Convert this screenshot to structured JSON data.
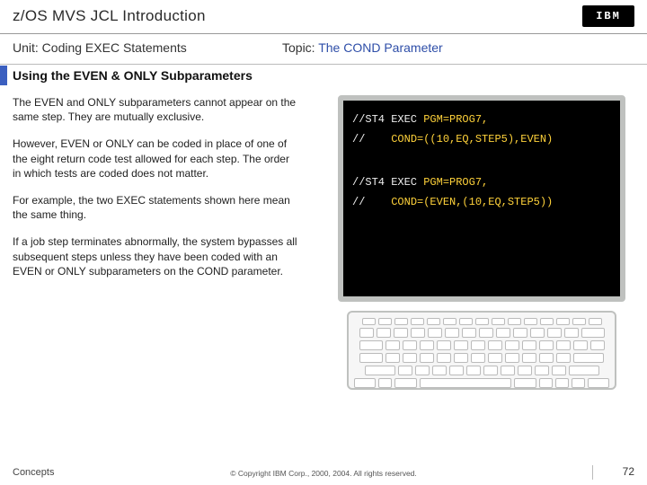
{
  "titlebar": {
    "title": "z/OS MVS JCL Introduction",
    "logo_text": "IBM"
  },
  "subbar": {
    "unit": "Unit: Coding EXEC Statements",
    "topic_label": "Topic: ",
    "topic_value": "The COND Parameter"
  },
  "heading": "Using the EVEN & ONLY Subparameters",
  "paragraphs": {
    "p1": "The EVEN and ONLY subparameters cannot appear on the same step. They are mutually exclusive.",
    "p2": "However, EVEN or ONLY can be coded in place of one of the eight return code test allowed for each step. The order in which tests are coded does not matter.",
    "p3": "For example, the two EXEC statements shown here mean the same thing.",
    "p4": "If a job step terminates abnormally, the system bypasses all subsequent steps unless they have been coded with an EVEN or ONLY subparameters on the COND parameter."
  },
  "terminal": {
    "l1a": "//ST4 EXEC ",
    "l1b": "PGM=PROG7,",
    "l2a": "//    ",
    "l2b": "COND=((10,EQ,STEP5),EVEN)",
    "l3a": "//ST4 EXEC ",
    "l3b": "PGM=PROG7,",
    "l4a": "//    ",
    "l4b": "COND=(EVEN,(10,EQ,STEP5))",
    "colors": {
      "bg": "#000000",
      "text": "#eeeeee",
      "highlight": "#ffd23a",
      "frame": "#bfc1bf"
    }
  },
  "footer": {
    "concepts": "Concepts",
    "copyright": "© Copyright IBM Corp., 2000, 2004. All rights reserved.",
    "page": "72"
  }
}
